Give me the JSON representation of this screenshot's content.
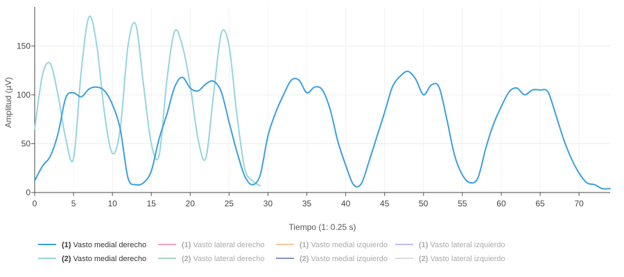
{
  "chart_data": {
    "type": "line",
    "xlabel": "Tiempo (1: 0.25 s)",
    "ylabel": "Amplitud (µV)",
    "xlim": [
      0,
      74
    ],
    "ylim": [
      0,
      190
    ],
    "x_ticks": [
      "0",
      "5",
      "10",
      "15",
      "20",
      "25",
      "30",
      "35",
      "40",
      "45",
      "50",
      "55",
      "60",
      "65",
      "70"
    ],
    "y_ticks": [
      "0",
      "50",
      "100",
      "150"
    ],
    "grid": true,
    "legend_position": "bottom",
    "series": [
      {
        "name": "Vasto medial derecho",
        "number": "(1)",
        "color": "#3a9ee0",
        "active": true,
        "points": [
          [
            0,
            12
          ],
          [
            1,
            27
          ],
          [
            2,
            37
          ],
          [
            3,
            60
          ],
          [
            4,
            97
          ],
          [
            5,
            102
          ],
          [
            6,
            98
          ],
          [
            7,
            106
          ],
          [
            8,
            108
          ],
          [
            9,
            104
          ],
          [
            10,
            90
          ],
          [
            11,
            65
          ],
          [
            12,
            15
          ],
          [
            13,
            8
          ],
          [
            14,
            10
          ],
          [
            15,
            22
          ],
          [
            16,
            55
          ],
          [
            17,
            80
          ],
          [
            18,
            108
          ],
          [
            19,
            118
          ],
          [
            20,
            107
          ],
          [
            21,
            104
          ],
          [
            22,
            111
          ],
          [
            23,
            114
          ],
          [
            24,
            103
          ],
          [
            25,
            72
          ],
          [
            26,
            42
          ],
          [
            27,
            17
          ],
          [
            28,
            8
          ],
          [
            29,
            18
          ],
          [
            30,
            58
          ],
          [
            31,
            82
          ],
          [
            32,
            100
          ],
          [
            33,
            115
          ],
          [
            34,
            115
          ],
          [
            35,
            102
          ],
          [
            36,
            108
          ],
          [
            37,
            105
          ],
          [
            38,
            85
          ],
          [
            39,
            52
          ],
          [
            40,
            28
          ],
          [
            41,
            8
          ],
          [
            42,
            9
          ],
          [
            43,
            32
          ],
          [
            44,
            57
          ],
          [
            45,
            82
          ],
          [
            46,
            108
          ],
          [
            47,
            119
          ],
          [
            48,
            124
          ],
          [
            49,
            116
          ],
          [
            50,
            100
          ],
          [
            51,
            110
          ],
          [
            52,
            108
          ],
          [
            53,
            75
          ],
          [
            54,
            38
          ],
          [
            55,
            18
          ],
          [
            56,
            10
          ],
          [
            57,
            15
          ],
          [
            58,
            45
          ],
          [
            59,
            70
          ],
          [
            60,
            88
          ],
          [
            61,
            103
          ],
          [
            62,
            107
          ],
          [
            63,
            100
          ],
          [
            64,
            105
          ],
          [
            65,
            105
          ],
          [
            66,
            103
          ],
          [
            67,
            80
          ],
          [
            68,
            55
          ],
          [
            69,
            35
          ],
          [
            70,
            20
          ],
          [
            71,
            10
          ],
          [
            72,
            8
          ],
          [
            73,
            4
          ],
          [
            74,
            4
          ]
        ]
      },
      {
        "name": "Vasto lateral derecho",
        "number": "(1)",
        "color": "#f4a0b8",
        "active": false,
        "points": []
      },
      {
        "name": "Vasto medial izquierdo",
        "number": "(1)",
        "color": "#f7c89a",
        "active": false,
        "points": []
      },
      {
        "name": "Vasto lateral izquierdo",
        "number": "(1)",
        "color": "#c6b8f0",
        "active": false,
        "points": []
      },
      {
        "name": "Vasto medial derecho",
        "number": "(2)",
        "color": "#94d4e0",
        "active": true,
        "points": [
          [
            0,
            65
          ],
          [
            1,
            120
          ],
          [
            2,
            132
          ],
          [
            3,
            100
          ],
          [
            4,
            55
          ],
          [
            5,
            35
          ],
          [
            6,
            125
          ],
          [
            7,
            180
          ],
          [
            8,
            150
          ],
          [
            9,
            80
          ],
          [
            10,
            40
          ],
          [
            11,
            65
          ],
          [
            12,
            150
          ],
          [
            13,
            172
          ],
          [
            14,
            110
          ],
          [
            15,
            50
          ],
          [
            16,
            38
          ],
          [
            17,
            115
          ],
          [
            18,
            165
          ],
          [
            19,
            150
          ],
          [
            20,
            110
          ],
          [
            21,
            55
          ],
          [
            22,
            35
          ],
          [
            23,
            100
          ],
          [
            24,
            163
          ],
          [
            25,
            150
          ],
          [
            26,
            80
          ],
          [
            27,
            25
          ],
          [
            28,
            12
          ],
          [
            29,
            7
          ]
        ]
      },
      {
        "name": "Vasto lateral derecho",
        "number": "(2)",
        "color": "#a8d5bf",
        "active": false,
        "points": []
      },
      {
        "name": "Vasto medial izquierdo",
        "number": "(2)",
        "color": "#7f97c6",
        "active": false,
        "points": []
      },
      {
        "name": "Vasto lateral izquierdo",
        "number": "(2)",
        "color": "#dcdcdc",
        "active": false,
        "points": []
      }
    ]
  }
}
